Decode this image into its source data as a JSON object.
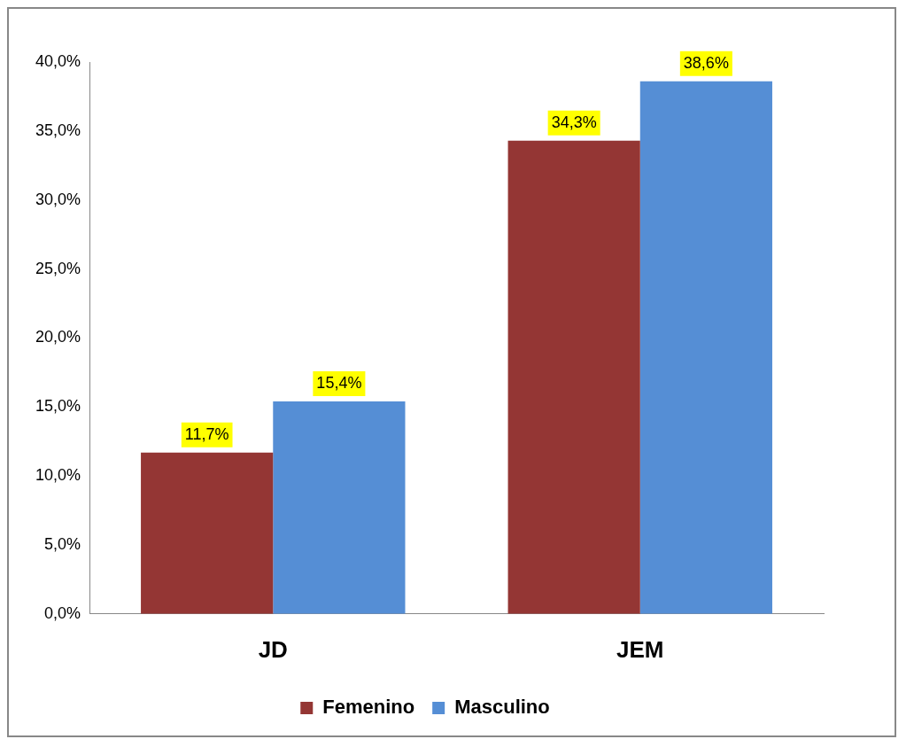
{
  "chart_data": {
    "type": "bar",
    "categories": [
      "JD",
      "JEM"
    ],
    "series": [
      {
        "name": "Femenino",
        "color": "#943634",
        "values": [
          11.7,
          34.3
        ],
        "value_labels": [
          "11,7%",
          "34,3%"
        ]
      },
      {
        "name": "Masculino",
        "color": "#558ed5",
        "values": [
          15.4,
          38.6
        ],
        "value_labels": [
          "15,4%",
          "38,6%"
        ]
      }
    ],
    "ylim": [
      0,
      40
    ],
    "yticks": [
      {
        "value": 0,
        "label": "0,0%"
      },
      {
        "value": 5,
        "label": "5,0%"
      },
      {
        "value": 10,
        "label": "10,0%"
      },
      {
        "value": 15,
        "label": "15,0%"
      },
      {
        "value": 20,
        "label": "20,0%"
      },
      {
        "value": 25,
        "label": "25,0%"
      },
      {
        "value": 30,
        "label": "30,0%"
      },
      {
        "value": 35,
        "label": "35,0%"
      },
      {
        "value": 40,
        "label": "40,0%"
      }
    ],
    "grid": false,
    "legend": "bottom"
  }
}
